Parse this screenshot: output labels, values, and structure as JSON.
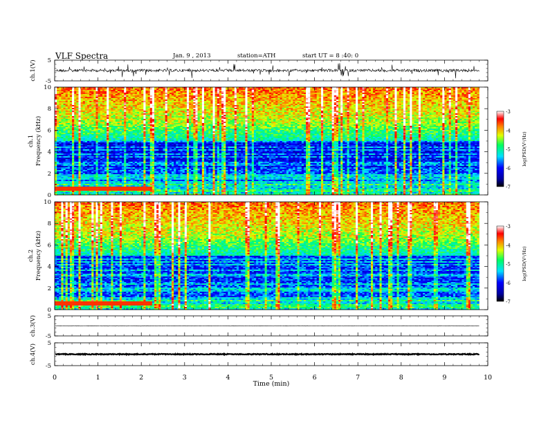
{
  "header": {
    "title": "VLF  Spectra",
    "date": "Jan. 9 , 2013",
    "station": "station=ATH",
    "start": "start  UT  =  8 :40: 0"
  },
  "chart_data": [
    {
      "type": "line",
      "id": "ch1-waveform",
      "ylabel": "ch.1(V)",
      "ylim": [
        -5,
        5
      ],
      "y_ticks": [
        "5",
        "-5"
      ],
      "xlim": [
        0,
        10
      ]
    },
    {
      "type": "heatmap",
      "id": "ch1-spectrogram",
      "ylabel": "Frequency (kHz)",
      "channel_label": "ch.1",
      "ylim": [
        0,
        10
      ],
      "y_ticks": [
        "0",
        "2",
        "4",
        "6",
        "8",
        "10"
      ],
      "xlim": [
        0,
        10
      ],
      "data_end_min": 9.8,
      "colorbar": {
        "label": "log(PSD(V²/Hz)",
        "range": [
          -7,
          -3
        ],
        "ticks": [
          "-3",
          "-4",
          "-5",
          "-6",
          "-7"
        ]
      }
    },
    {
      "type": "heatmap",
      "id": "ch2-spectrogram",
      "ylabel": "Frequency (kHz)",
      "channel_label": "ch.2",
      "ylim": [
        0,
        10
      ],
      "y_ticks": [
        "0",
        "2",
        "4",
        "6",
        "8",
        "10"
      ],
      "xlim": [
        0,
        10
      ],
      "data_end_min": 9.8,
      "colorbar": {
        "label": "log(PSD(V²/Hz)",
        "range": [
          -7,
          -3
        ],
        "ticks": [
          "-3",
          "-4",
          "-5",
          "-6",
          "-7"
        ]
      }
    },
    {
      "type": "line",
      "id": "ch3-waveform",
      "ylabel": "ch.3(V)",
      "ylim": [
        -5,
        5
      ],
      "y_ticks": [
        "5",
        "-5"
      ],
      "xlim": [
        0,
        10
      ]
    },
    {
      "type": "line",
      "id": "ch4-waveform",
      "ylabel": "ch.4(V)",
      "ylim": [
        -5,
        5
      ],
      "y_ticks": [
        "5",
        "-5"
      ],
      "xlim": [
        0,
        10
      ],
      "xlabel": "Time  (min)",
      "x_ticks": [
        "0",
        "1",
        "2",
        "3",
        "4",
        "5",
        "6",
        "7",
        "8",
        "9",
        "10"
      ]
    }
  ]
}
